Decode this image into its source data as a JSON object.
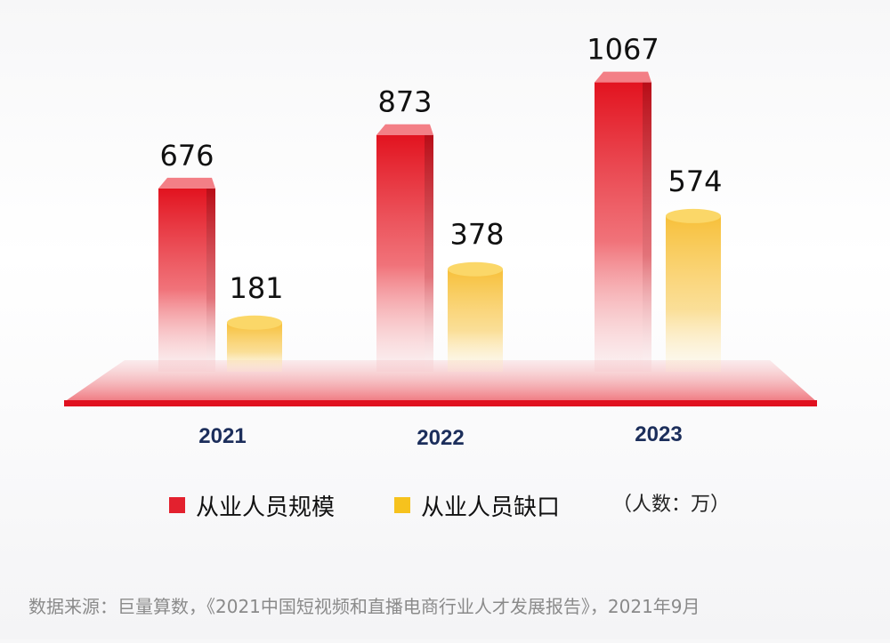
{
  "chart_data": {
    "type": "bar",
    "categories": [
      "2021",
      "2022",
      "2023"
    ],
    "series": [
      {
        "name": "从业人员规模",
        "values": [
          676,
          873,
          1067
        ],
        "color": "#e3212e"
      },
      {
        "name": "从业人员缺口",
        "values": [
          181,
          378,
          574
        ],
        "color": "#f6b81a"
      }
    ],
    "ylim": [
      0,
      1100
    ],
    "grid": false,
    "legend_position": "bottom"
  },
  "legend": {
    "items": [
      "从业人员规模",
      "从业人员缺口"
    ],
    "unit": "（人数：万）"
  },
  "source": "数据来源：巨量算数，《2021中国短视频和直播电商行业人才发展报告》，2021年9月"
}
